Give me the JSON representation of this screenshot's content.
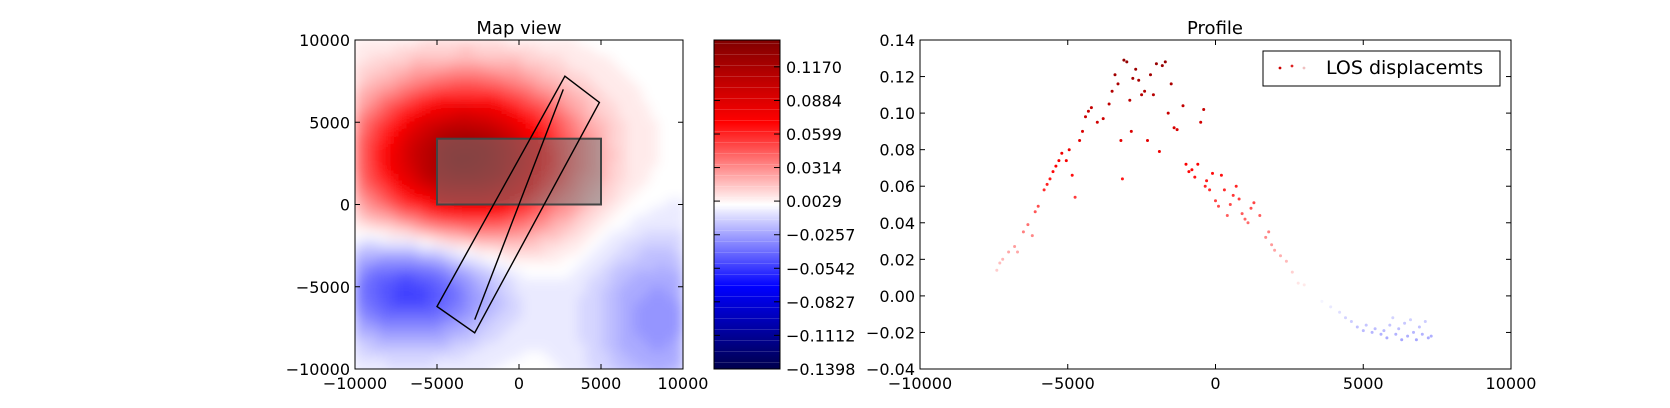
{
  "chart_data": [
    {
      "type": "heatmap",
      "title": "Map view",
      "xlim": [
        -10000,
        10000
      ],
      "ylim": [
        -10000,
        10000
      ],
      "xticks": [
        "−10000",
        "−5000",
        "0",
        "5000",
        "10000"
      ],
      "yticks": [
        "10000",
        "5000",
        "0",
        "−5000",
        "−10000"
      ],
      "grid": false,
      "field": {
        "positive_lobe": {
          "center": [
            -3200,
            2800
          ],
          "peak": 0.128
        },
        "negative_lobe": {
          "center": [
            -6500,
            -5200
          ],
          "peak": -0.055
        },
        "secondary_negative_lobe": {
          "center": [
            8500,
            -7000
          ],
          "peak": -0.03
        }
      },
      "fault_rectangle": {
        "x": [
          -5000,
          5000
        ],
        "y": [
          0,
          4000
        ]
      },
      "profile_box": [
        [
          -5000,
          -6200
        ],
        [
          2800,
          7800
        ],
        [
          4900,
          6200
        ],
        [
          -2700,
          -7800
        ]
      ],
      "profile_centerline": [
        [
          -2700,
          -7000
        ],
        [
          2700,
          7000
        ]
      ]
    },
    {
      "type": "colorbar",
      "range": [
        -0.1398,
        0.1398
      ],
      "tick_labels": [
        "0.1170",
        "0.0884",
        "0.0599",
        "0.0314",
        "0.0029",
        "−0.0257",
        "−0.0542",
        "−0.0827",
        "−0.1112",
        "−0.1398"
      ],
      "tick_values": [
        0.117,
        0.0884,
        0.0599,
        0.0314,
        0.0029,
        -0.0257,
        -0.0542,
        -0.0827,
        -0.1112,
        -0.1398
      ]
    },
    {
      "type": "scatter",
      "title": "Profile",
      "xlim": [
        -10000,
        10000
      ],
      "ylim": [
        -0.04,
        0.14
      ],
      "xticks": [
        "−10000",
        "−5000",
        "0",
        "5000",
        "10000"
      ],
      "yticks": [
        "0.14",
        "0.12",
        "0.10",
        "0.08",
        "0.06",
        "0.04",
        "0.02",
        "0.00",
        "−0.02",
        "−0.04"
      ],
      "legend": {
        "label": "LOS displacemts",
        "placement": "top-right"
      },
      "series": [
        {
          "name": "LOS displacemts",
          "points": [
            [
              -7400,
              0.014
            ],
            [
              -7300,
              0.018
            ],
            [
              -7200,
              0.02
            ],
            [
              -7000,
              0.024
            ],
            [
              -6800,
              0.027
            ],
            [
              -6700,
              0.024
            ],
            [
              -6500,
              0.035
            ],
            [
              -6350,
              0.039
            ],
            [
              -6200,
              0.033
            ],
            [
              -6100,
              0.046
            ],
            [
              -6000,
              0.049
            ],
            [
              -5800,
              0.058
            ],
            [
              -5700,
              0.061
            ],
            [
              -5600,
              0.064
            ],
            [
              -5500,
              0.068
            ],
            [
              -5400,
              0.071
            ],
            [
              -5300,
              0.074
            ],
            [
              -5200,
              0.078
            ],
            [
              -5050,
              0.074
            ],
            [
              -4950,
              0.08
            ],
            [
              -4850,
              0.066
            ],
            [
              -4750,
              0.054
            ],
            [
              -4600,
              0.085
            ],
            [
              -4500,
              0.09
            ],
            [
              -4400,
              0.098
            ],
            [
              -4300,
              0.101
            ],
            [
              -4200,
              0.103
            ],
            [
              -4000,
              0.095
            ],
            [
              -3800,
              0.097
            ],
            [
              -3600,
              0.105
            ],
            [
              -3500,
              0.112
            ],
            [
              -3400,
              0.121
            ],
            [
              -3300,
              0.116
            ],
            [
              -3200,
              0.085
            ],
            [
              -3150,
              0.064
            ],
            [
              -3100,
              0.129
            ],
            [
              -3000,
              0.128
            ],
            [
              -2900,
              0.107
            ],
            [
              -2850,
              0.09
            ],
            [
              -2800,
              0.119
            ],
            [
              -2700,
              0.124
            ],
            [
              -2600,
              0.118
            ],
            [
              -2500,
              0.11
            ],
            [
              -2400,
              0.112
            ],
            [
              -2300,
              0.085
            ],
            [
              -2200,
              0.121
            ],
            [
              -2100,
              0.11
            ],
            [
              -2000,
              0.127
            ],
            [
              -1900,
              0.079
            ],
            [
              -1800,
              0.126
            ],
            [
              -1700,
              0.128
            ],
            [
              -1600,
              0.1
            ],
            [
              -1500,
              0.116
            ],
            [
              -1400,
              0.092
            ],
            [
              -1300,
              0.091
            ],
            [
              -1100,
              0.104
            ],
            [
              -1000,
              0.072
            ],
            [
              -900,
              0.068
            ],
            [
              -800,
              0.069
            ],
            [
              -700,
              0.065
            ],
            [
              -600,
              0.072
            ],
            [
              -500,
              0.095
            ],
            [
              -400,
              0.102
            ],
            [
              -350,
              0.06
            ],
            [
              -300,
              0.063
            ],
            [
              -200,
              0.058
            ],
            [
              -100,
              0.067
            ],
            [
              0,
              0.052
            ],
            [
              100,
              0.049
            ],
            [
              200,
              0.066
            ],
            [
              300,
              0.058
            ],
            [
              400,
              0.044
            ],
            [
              500,
              0.05
            ],
            [
              600,
              0.055
            ],
            [
              700,
              0.06
            ],
            [
              800,
              0.053
            ],
            [
              900,
              0.045
            ],
            [
              1000,
              0.042
            ],
            [
              1100,
              0.04
            ],
            [
              1200,
              0.048
            ],
            [
              1300,
              0.051
            ],
            [
              1500,
              0.044
            ],
            [
              1700,
              0.032
            ],
            [
              1800,
              0.035
            ],
            [
              1900,
              0.028
            ],
            [
              2000,
              0.025
            ],
            [
              2200,
              0.022
            ],
            [
              2400,
              0.019
            ],
            [
              2600,
              0.013
            ],
            [
              2800,
              0.007
            ],
            [
              3000,
              0.006
            ],
            [
              3300,
              0.0
            ],
            [
              3600,
              -0.003
            ],
            [
              3900,
              -0.006
            ],
            [
              4200,
              -0.009
            ],
            [
              4400,
              -0.012
            ],
            [
              4600,
              -0.014
            ],
            [
              4800,
              -0.017
            ],
            [
              5000,
              -0.019
            ],
            [
              5100,
              -0.016
            ],
            [
              5300,
              -0.02
            ],
            [
              5400,
              -0.018
            ],
            [
              5600,
              -0.021
            ],
            [
              5700,
              -0.019
            ],
            [
              5800,
              -0.023
            ],
            [
              5900,
              -0.016
            ],
            [
              6000,
              -0.012
            ],
            [
              6100,
              -0.021
            ],
            [
              6200,
              -0.018
            ],
            [
              6300,
              -0.024
            ],
            [
              6400,
              -0.015
            ],
            [
              6500,
              -0.022
            ],
            [
              6600,
              -0.013
            ],
            [
              6700,
              -0.02
            ],
            [
              6800,
              -0.024
            ],
            [
              6900,
              -0.017
            ],
            [
              7000,
              -0.021
            ],
            [
              7100,
              -0.014
            ],
            [
              7200,
              -0.023
            ],
            [
              7300,
              -0.022
            ]
          ]
        }
      ]
    }
  ]
}
